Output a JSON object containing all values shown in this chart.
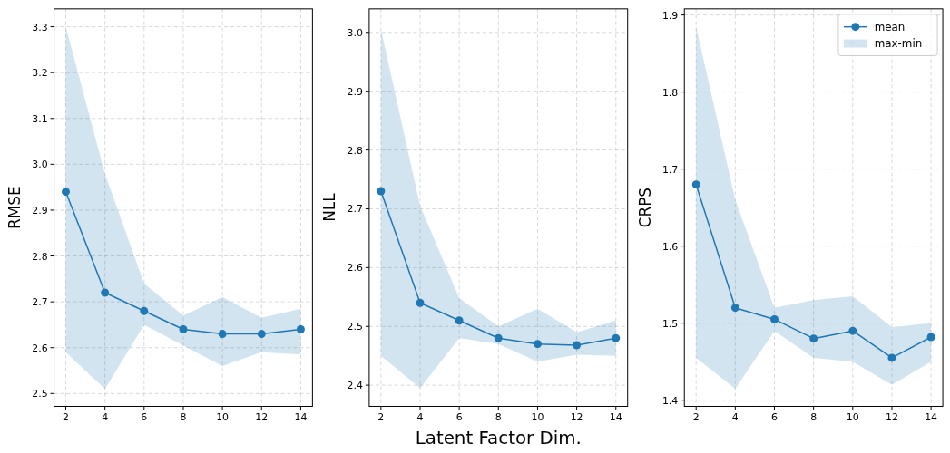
{
  "chart_data": [
    {
      "type": "line",
      "ylabel": "RMSE",
      "x": [
        2,
        4,
        6,
        8,
        10,
        12,
        14
      ],
      "xlim": [
        1.4,
        14.6
      ],
      "xticks": [
        2,
        4,
        6,
        8,
        10,
        12,
        14
      ],
      "ylim": [
        2.472,
        3.339
      ],
      "yticks": [
        {
          "value": 2.5,
          "label": "2.5"
        },
        {
          "value": 2.6,
          "label": "2.6"
        },
        {
          "value": 2.7,
          "label": "2.7"
        },
        {
          "value": 2.8,
          "label": "2.8"
        },
        {
          "value": 2.9,
          "label": "2.9"
        },
        {
          "value": 3.0,
          "label": "3.0"
        },
        {
          "value": 3.1,
          "label": "3.1"
        },
        {
          "value": 3.2,
          "label": "3.2"
        },
        {
          "value": 3.3,
          "label": "3.3"
        }
      ],
      "grid": true,
      "legend": false,
      "marker": "circle",
      "line_style": "solid",
      "series": [
        {
          "color": "#1f77b4",
          "values": [
            2.94,
            2.72,
            2.68,
            2.64,
            2.63,
            2.63,
            2.64
          ],
          "lower": [
            2.59,
            2.51,
            2.65,
            2.605,
            2.56,
            2.59,
            2.585
          ],
          "upper": [
            3.3,
            2.979,
            2.74,
            2.67,
            2.71,
            2.665,
            2.685
          ]
        }
      ]
    },
    {
      "type": "line",
      "ylabel": "NLL",
      "xlabel": "Latent Factor Dim.",
      "x": [
        2,
        4,
        6,
        8,
        10,
        12,
        14
      ],
      "xlim": [
        1.4,
        14.6
      ],
      "xticks": [
        2,
        4,
        6,
        8,
        10,
        12,
        14
      ],
      "ylim": [
        2.364,
        3.04
      ],
      "yticks": [
        {
          "value": 2.4,
          "label": "2.4"
        },
        {
          "value": 2.5,
          "label": "2.5"
        },
        {
          "value": 2.6,
          "label": "2.6"
        },
        {
          "value": 2.7,
          "label": "2.7"
        },
        {
          "value": 2.8,
          "label": "2.8"
        },
        {
          "value": 2.9,
          "label": "2.9"
        },
        {
          "value": 3.0,
          "label": "3.0"
        }
      ],
      "grid": true,
      "legend": false,
      "marker": "circle",
      "line_style": "solid",
      "series": [
        {
          "color": "#1f77b4",
          "values": [
            2.73,
            2.54,
            2.51,
            2.48,
            2.47,
            2.468,
            2.48
          ],
          "lower": [
            2.45,
            2.395,
            2.48,
            2.47,
            2.44,
            2.452,
            2.45
          ],
          "upper": [
            3.005,
            2.705,
            2.548,
            2.5,
            2.53,
            2.49,
            2.51
          ]
        }
      ]
    },
    {
      "type": "line",
      "ylabel": "CRPS",
      "x": [
        2,
        4,
        6,
        8,
        10,
        12,
        14
      ],
      "xlim": [
        1.4,
        14.6
      ],
      "xticks": [
        2,
        4,
        6,
        8,
        10,
        12,
        14
      ],
      "ylim": [
        1.392,
        1.908
      ],
      "yticks": [
        {
          "value": 1.4,
          "label": "1.4"
        },
        {
          "value": 1.5,
          "label": "1.5"
        },
        {
          "value": 1.6,
          "label": "1.6"
        },
        {
          "value": 1.7,
          "label": "1.7"
        },
        {
          "value": 1.8,
          "label": "1.8"
        },
        {
          "value": 1.9,
          "label": "1.9"
        }
      ],
      "grid": true,
      "legend": "top right",
      "marker": "circle",
      "line_style": "solid",
      "annotations": [
        "max-min"
      ],
      "series": [
        {
          "name": "mean",
          "color": "#1f77b4",
          "values": [
            1.68,
            1.52,
            1.505,
            1.48,
            1.49,
            1.455,
            1.482
          ],
          "lower": [
            1.455,
            1.415,
            1.49,
            1.455,
            1.45,
            1.42,
            1.45
          ],
          "upper": [
            1.885,
            1.66,
            1.52,
            1.53,
            1.535,
            1.495,
            1.5
          ]
        }
      ]
    }
  ]
}
